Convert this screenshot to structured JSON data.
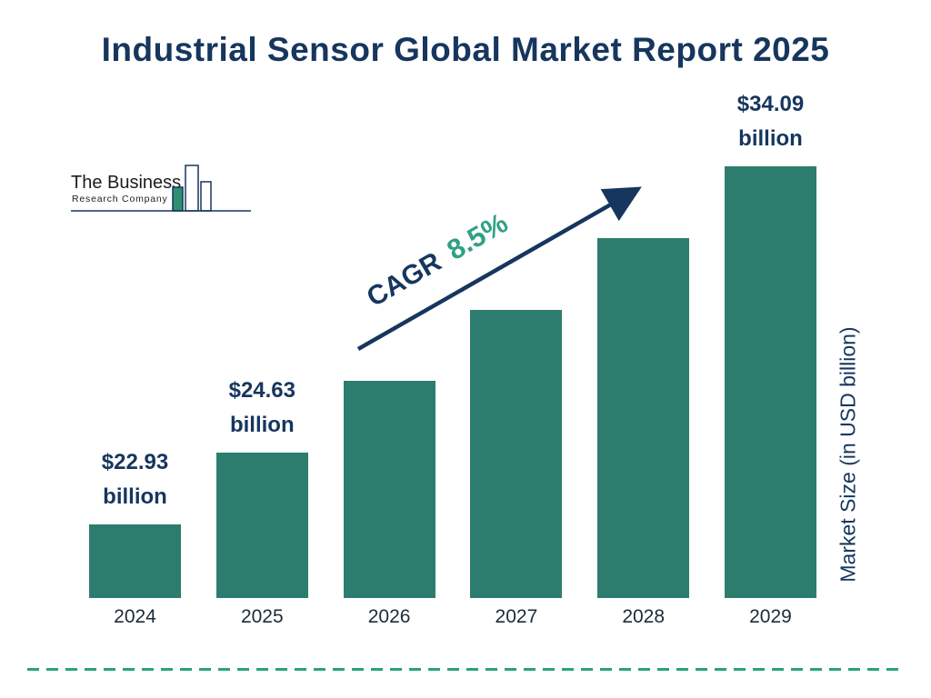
{
  "title": "Industrial Sensor Global Market Report 2025",
  "logo": {
    "line1": "The Business",
    "line2": "Research Company"
  },
  "cagr": {
    "label": "CAGR",
    "value": "8.5%"
  },
  "y_axis_label": "Market Size (in USD billion)",
  "chart_data": {
    "type": "bar",
    "title": "Industrial Sensor Global Market Report 2025",
    "categories": [
      "2024",
      "2025",
      "2026",
      "2027",
      "2028",
      "2029"
    ],
    "values": [
      22.93,
      24.63,
      26.72,
      29.0,
      31.46,
      34.09
    ],
    "value_labels": [
      [
        "$22.93",
        "billion"
      ],
      [
        "$24.63",
        "billion"
      ],
      null,
      null,
      null,
      [
        "$34.09",
        "billion"
      ]
    ],
    "ylabel": "Market Size (in USD billion)",
    "annotation": "CAGR 8.5%",
    "bar_color": "#2d7d6e",
    "label_color": "#16365e",
    "accent_color": "#2fa184",
    "gridlines": false,
    "legend": false,
    "x_axis_visible": false,
    "y_axis_visible": false
  },
  "colors": {
    "navy": "#16365e",
    "teal_bar": "#2d7d6e",
    "accent_green": "#2fa184",
    "dash_line": "#2aa181"
  }
}
